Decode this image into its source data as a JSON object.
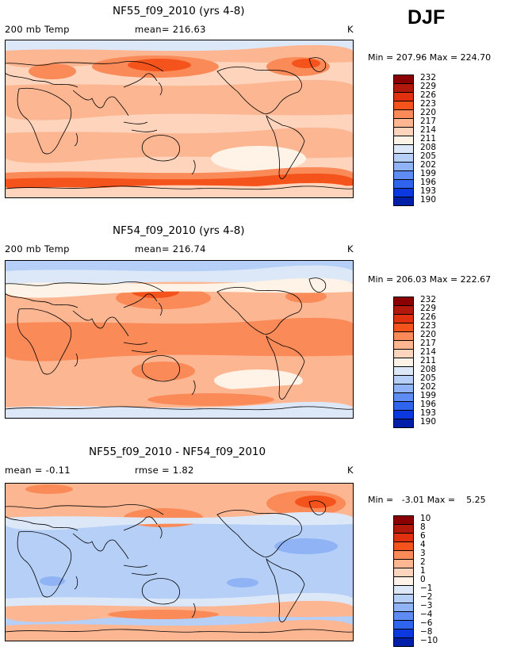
{
  "season": "DJF",
  "panels": [
    {
      "title": "NF55_f09_2010 (yrs 4-8)",
      "left_label": "200 mb Temp",
      "center_label": "mean= 216.63",
      "right_label": "K",
      "minmax": "Min = 207.96 Max = 224.70",
      "colorbar_labels": [
        "232",
        "229",
        "226",
        "223",
        "220",
        "217",
        "214",
        "211",
        "208",
        "205",
        "202",
        "199",
        "196",
        "193",
        "190"
      ],
      "colorbar_colors": [
        "#8b0000",
        "#b2180c",
        "#e03010",
        "#f5531c",
        "#fa8a58",
        "#fdb692",
        "#fed4bc",
        "#fef3e6",
        "#dce8f8",
        "#b5cff7",
        "#8fb3f5",
        "#5f8cf2",
        "#2f64ee",
        "#0c38e0",
        "#001fa8"
      ],
      "map_kind": "temp_nf55"
    },
    {
      "title": "NF54_f09_2010 (yrs 4-8)",
      "left_label": "200 mb Temp",
      "center_label": "mean= 216.74",
      "right_label": "K",
      "minmax": "Min = 206.03 Max = 222.67",
      "colorbar_labels": [
        "232",
        "229",
        "226",
        "223",
        "220",
        "217",
        "214",
        "211",
        "208",
        "205",
        "202",
        "199",
        "196",
        "193",
        "190"
      ],
      "colorbar_colors": [
        "#8b0000",
        "#b2180c",
        "#e03010",
        "#f5531c",
        "#fa8a58",
        "#fdb692",
        "#fed4bc",
        "#fef3e6",
        "#dce8f8",
        "#b5cff7",
        "#8fb3f5",
        "#5f8cf2",
        "#2f64ee",
        "#0c38e0",
        "#001fa8"
      ],
      "map_kind": "temp_nf54"
    },
    {
      "title": "NF55_f09_2010 - NF54_f09_2010",
      "left_label": "mean =   -0.11",
      "center_label": "rmse =   1.82",
      "right_label": "K",
      "minmax": "Min =   -3.01 Max =    5.25",
      "colorbar_labels": [
        "10",
        "8",
        "6",
        "4",
        "3",
        "2",
        "1",
        "0",
        "−1",
        "−2",
        "−3",
        "−4",
        "−6",
        "−8",
        "−10"
      ],
      "colorbar_colors": [
        "#8b0000",
        "#b2180c",
        "#e03010",
        "#f5531c",
        "#fa8a58",
        "#fdb692",
        "#fed4bc",
        "#fef3e6",
        "#dce8f8",
        "#b5cff7",
        "#8fb3f5",
        "#5f8cf2",
        "#2f64ee",
        "#0c38e0",
        "#001fa8"
      ],
      "map_kind": "diff"
    }
  ]
}
